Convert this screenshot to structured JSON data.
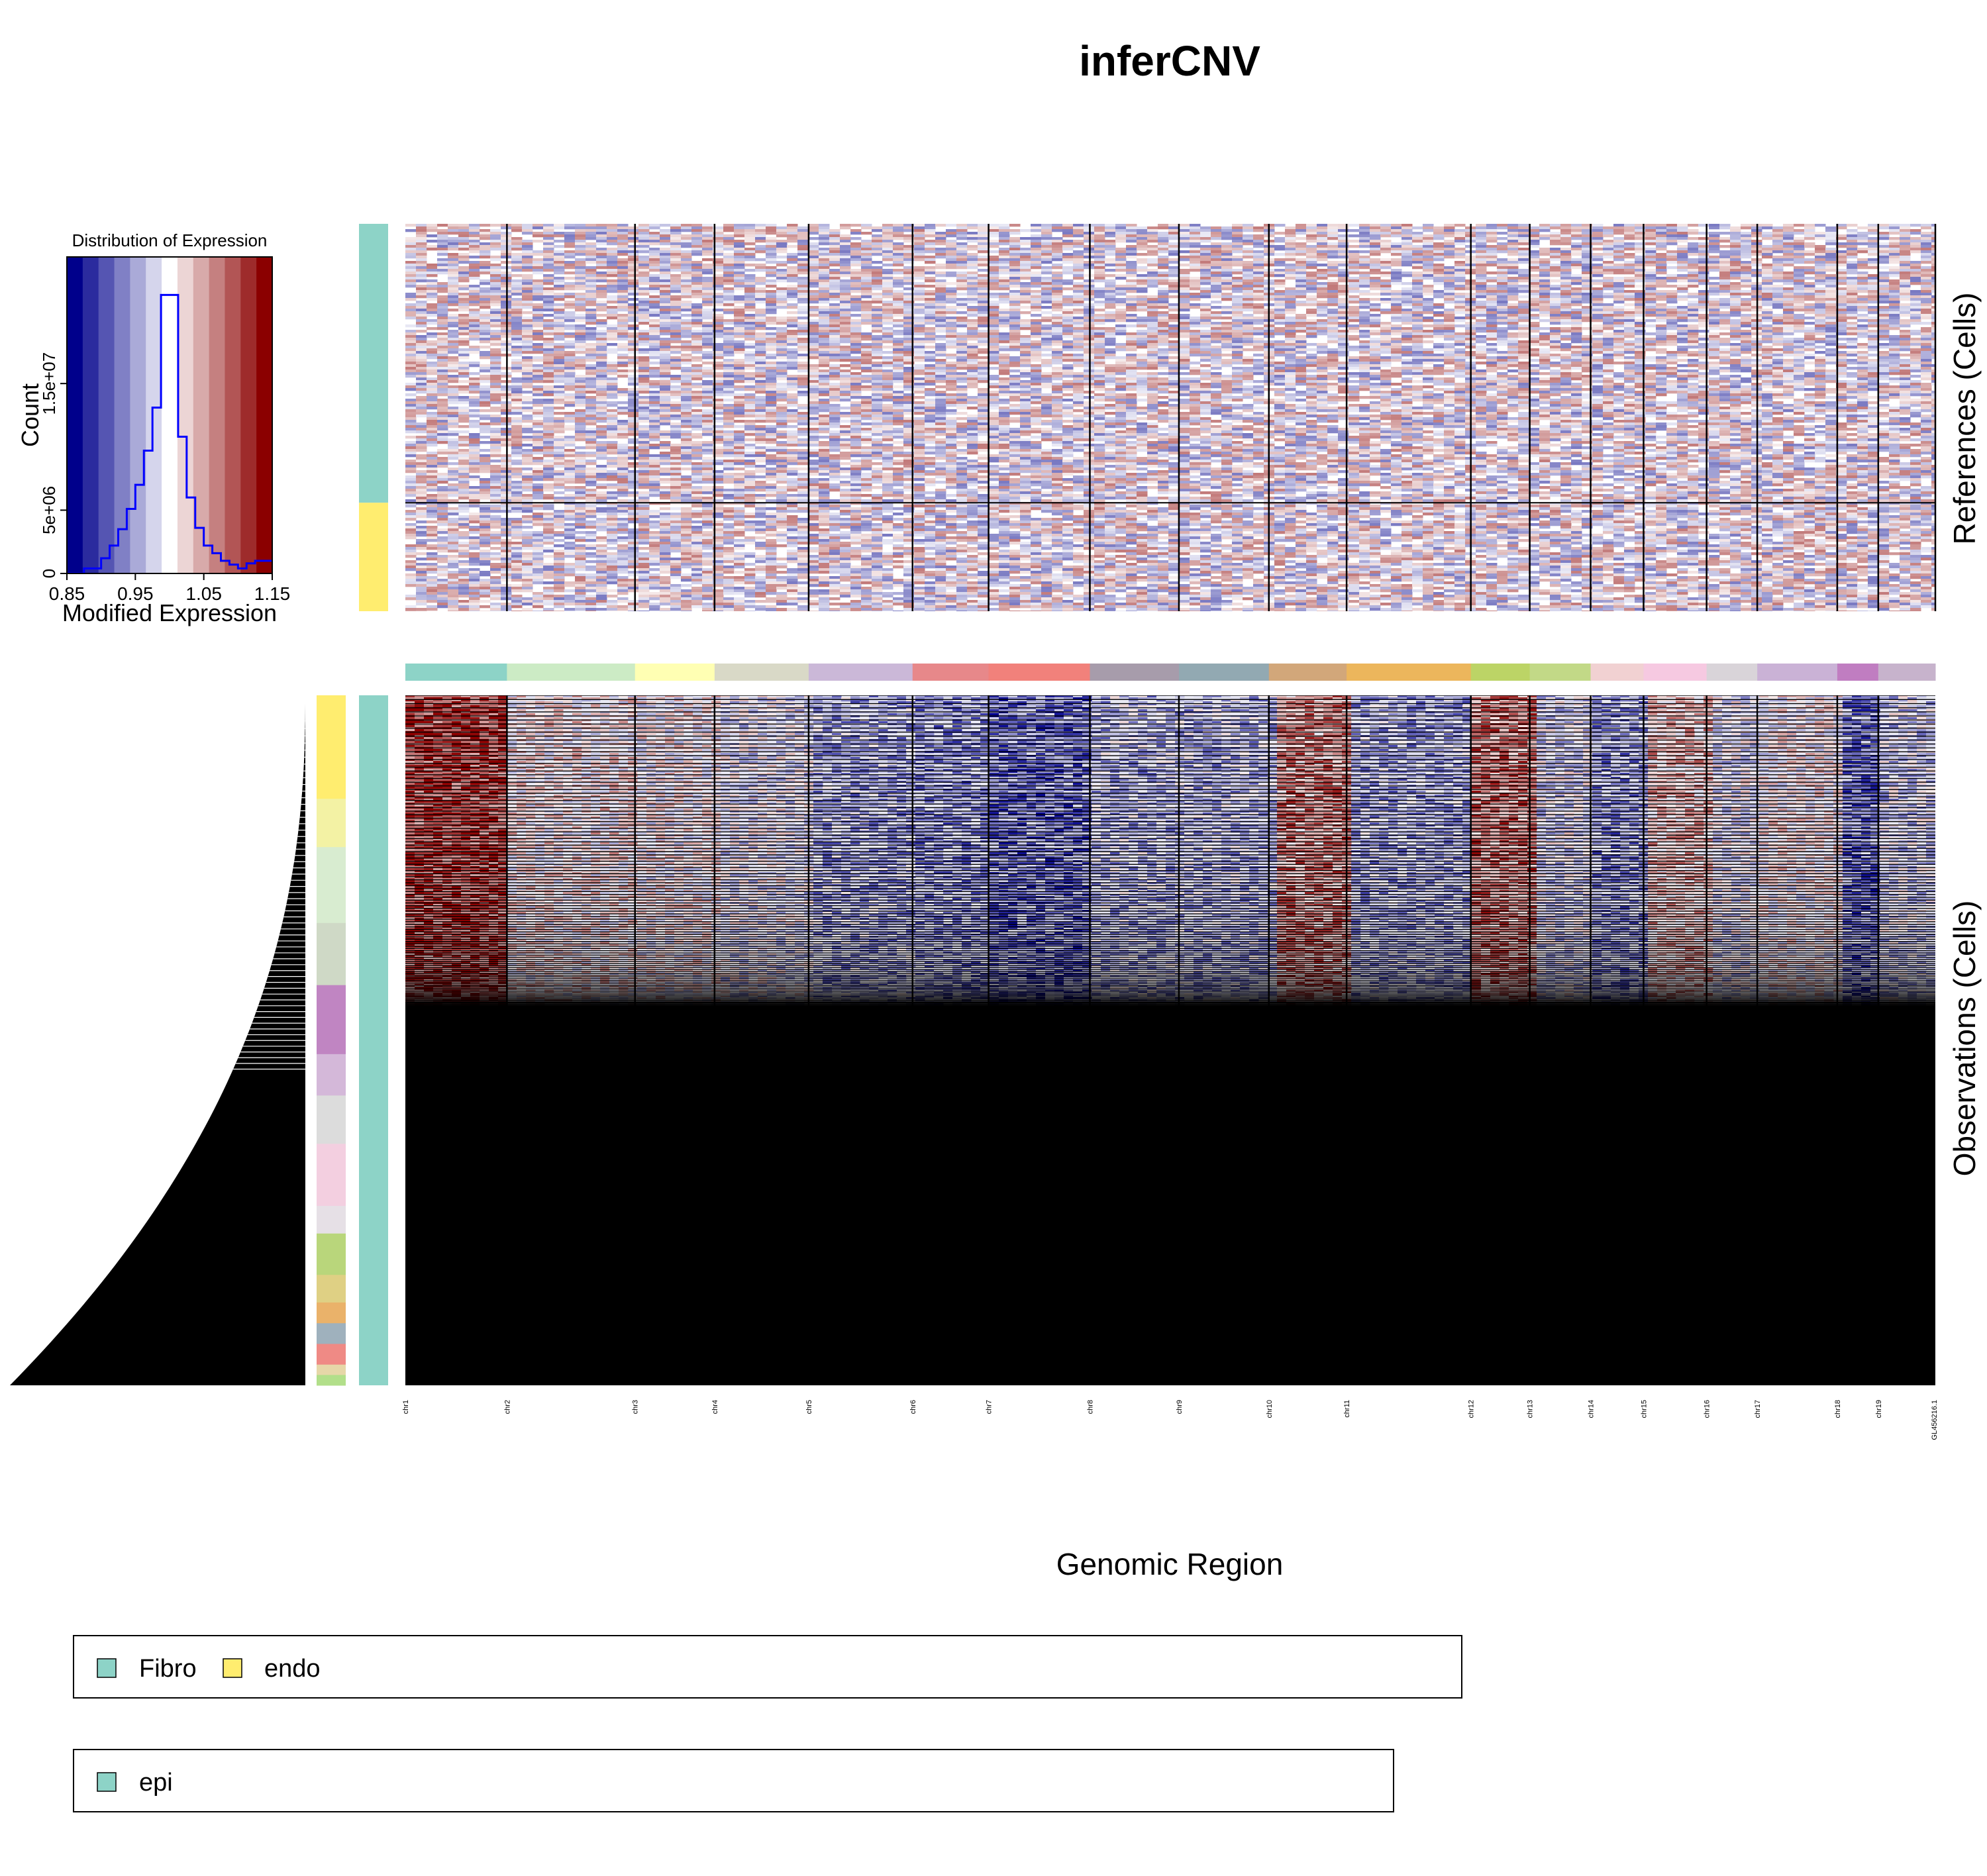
{
  "title": "inferCNV",
  "colors": {
    "low": "#00008b",
    "mid": "#ffffff",
    "high": "#8b0000",
    "fibro": "#8dd3c7",
    "endo": "#ffed6f",
    "epi": "#8dd3c7",
    "histogram_line": "#0000ff"
  },
  "chart_data": [
    {
      "type": "histogram",
      "title": "Distribution of Expression",
      "xlabel": "Modified Expression",
      "ylabel": "Count",
      "xlim": [
        0.85,
        1.15
      ],
      "ylim": [
        0,
        25000000
      ],
      "x_ticks": [
        "0.85",
        "0.95",
        "1.05",
        "1.15"
      ],
      "y_ticks": [
        "0",
        "5e+06",
        "1.5e+07"
      ],
      "y_tick_values": [
        0,
        5000000,
        15000000
      ],
      "bin_edges": [
        0.85,
        0.8625,
        0.875,
        0.8875,
        0.9,
        0.9125,
        0.925,
        0.9375,
        0.95,
        0.9625,
        0.975,
        0.9875,
        1.0,
        1.0125,
        1.025,
        1.0375,
        1.05,
        1.0625,
        1.075,
        1.0875,
        1.1,
        1.1125,
        1.125,
        1.1375,
        1.15
      ],
      "counts": [
        0,
        0,
        400000,
        400000,
        1200000,
        2200000,
        3500000,
        5100000,
        7000000,
        9700000,
        13100000,
        22000000,
        22000000,
        10800000,
        6000000,
        3600000,
        2200000,
        1600000,
        1000000,
        700000,
        400000,
        800000,
        1000000,
        1000000
      ],
      "color_scale": [
        "low",
        "mid",
        "high"
      ]
    },
    {
      "type": "heatmap",
      "name": "references",
      "ylabel": "References (Cells)",
      "row_groups": [
        {
          "label": "Fibro",
          "fraction": 0.72,
          "color": "#8dd3c7"
        },
        {
          "label": "endo",
          "fraction": 0.28,
          "color": "#ffed6f"
        }
      ]
    },
    {
      "type": "heatmap",
      "name": "observations",
      "ylabel": "Observations (Cells)",
      "xlabel": "Genomic Region",
      "annotated_fraction": 0.455,
      "row_groups": [
        {
          "label": "epi",
          "fraction": 1.0,
          "color": "#8dd3c7"
        }
      ]
    }
  ],
  "chromosomes": [
    {
      "label": "chr1",
      "start": 0.0,
      "end": 0.0664,
      "color": "#8dd3c7"
    },
    {
      "label": "chr2",
      "start": 0.0664,
      "end": 0.1501,
      "color": "#ccebc5"
    },
    {
      "label": "chr3",
      "start": 0.1501,
      "end": 0.2021,
      "color": "#ffffb3"
    },
    {
      "label": "chr4",
      "start": 0.2021,
      "end": 0.2636,
      "color": "#d9d9c7"
    },
    {
      "label": "chr5",
      "start": 0.2636,
      "end": 0.3315,
      "color": "#cbb8d8"
    },
    {
      "label": "chr6",
      "start": 0.3315,
      "end": 0.3812,
      "color": "#e7888a"
    },
    {
      "label": "chr7",
      "start": 0.3812,
      "end": 0.4474,
      "color": "#f1817b"
    },
    {
      "label": "chr8",
      "start": 0.4474,
      "end": 0.5056,
      "color": "#a79cab"
    },
    {
      "label": "chr9",
      "start": 0.5056,
      "end": 0.5644,
      "color": "#92a9b2"
    },
    {
      "label": "chr10",
      "start": 0.5644,
      "end": 0.6152,
      "color": "#d2a77a"
    },
    {
      "label": "chr11",
      "start": 0.6152,
      "end": 0.6964,
      "color": "#ecb65c"
    },
    {
      "label": "chr12",
      "start": 0.6964,
      "end": 0.7349,
      "color": "#bcd466"
    },
    {
      "label": "chr13",
      "start": 0.7349,
      "end": 0.7747,
      "color": "#c2d987"
    },
    {
      "label": "chr14",
      "start": 0.7747,
      "end": 0.8093,
      "color": "#f1d1d2"
    },
    {
      "label": "chr15",
      "start": 0.8093,
      "end": 0.8505,
      "color": "#f6c9e1"
    },
    {
      "label": "chr16",
      "start": 0.8505,
      "end": 0.8836,
      "color": "#d9d4d9"
    },
    {
      "label": "chr17",
      "start": 0.8836,
      "end": 0.9359,
      "color": "#cab2d6"
    },
    {
      "label": "chr18",
      "start": 0.9359,
      "end": 0.9627,
      "color": "#c07dc1"
    },
    {
      "label": "chr19",
      "start": 0.9627,
      "end": 1.0,
      "color": "#c7b3cc"
    }
  ],
  "tail_label": "GL456216.1",
  "legends": [
    {
      "items": [
        {
          "label": "Fibro",
          "color": "#8dd3c7"
        },
        {
          "label": "endo",
          "color": "#ffed6f"
        }
      ]
    },
    {
      "items": [
        {
          "label": "epi",
          "color": "#8dd3c7"
        }
      ]
    }
  ]
}
